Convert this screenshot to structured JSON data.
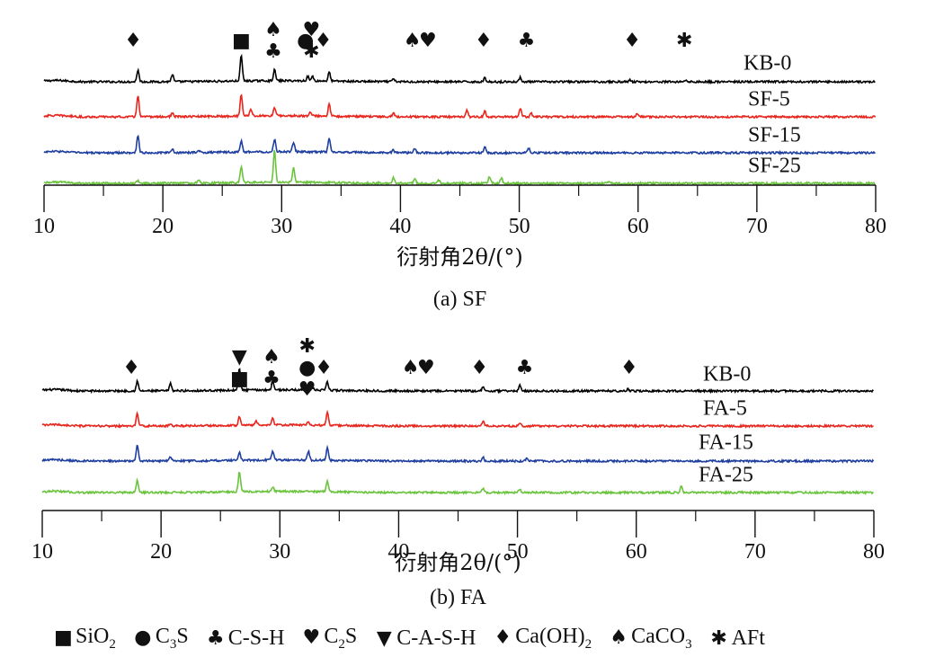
{
  "chart_data": [
    {
      "panel": "(a) SF",
      "type": "line",
      "caption": "(a) SF",
      "xlabel": "衍射角2θ/(°)",
      "xlim": [
        10,
        80
      ],
      "xticks": [
        10,
        20,
        30,
        40,
        50,
        60,
        70,
        80
      ],
      "yaxis": "none",
      "series": [
        {
          "name": "KB-0",
          "color": "#000000",
          "peaks": [
            [
              17.9,
              13
            ],
            [
              20.8,
              8
            ],
            [
              26.6,
              28
            ],
            [
              29.4,
              12
            ],
            [
              32.2,
              5
            ],
            [
              32.6,
              5
            ],
            [
              34.0,
              10
            ],
            [
              39.4,
              3
            ],
            [
              47.1,
              4
            ],
            [
              50.1,
              5
            ],
            [
              59.3,
              2
            ],
            [
              64.0,
              2
            ]
          ]
        },
        {
          "name": "SF-5",
          "color": "#e8261d",
          "peaks": [
            [
              17.9,
              24
            ],
            [
              20.8,
              4
            ],
            [
              26.6,
              24
            ],
            [
              27.4,
              8
            ],
            [
              29.4,
              9
            ],
            [
              32.4,
              5
            ],
            [
              34.0,
              14
            ],
            [
              39.4,
              4
            ],
            [
              45.6,
              7
            ],
            [
              47.1,
              6
            ],
            [
              50.1,
              9
            ],
            [
              51.0,
              4
            ],
            [
              59.9,
              3
            ]
          ]
        },
        {
          "name": "SF-15",
          "color": "#1f3fa0",
          "peaks": [
            [
              17.9,
              20
            ],
            [
              20.8,
              4
            ],
            [
              23.0,
              3
            ],
            [
              26.6,
              12
            ],
            [
              29.4,
              14
            ],
            [
              31.0,
              11
            ],
            [
              34.0,
              16
            ],
            [
              39.4,
              3
            ],
            [
              41.2,
              4
            ],
            [
              47.1,
              6
            ],
            [
              50.8,
              5
            ]
          ]
        },
        {
          "name": "SF-25",
          "color": "#6ac43d",
          "peaks": [
            [
              17.9,
              3
            ],
            [
              23.0,
              4
            ],
            [
              26.6,
              18
            ],
            [
              29.4,
              36
            ],
            [
              31.0,
              16
            ],
            [
              39.4,
              6
            ],
            [
              41.2,
              5
            ],
            [
              43.2,
              4
            ],
            [
              47.5,
              8
            ],
            [
              48.5,
              6
            ],
            [
              57.5,
              2
            ]
          ]
        }
      ],
      "annotations": [
        {
          "x": 17.5,
          "symbols": [
            "♦"
          ]
        },
        {
          "x": 26.6,
          "symbols": [
            "■"
          ]
        },
        {
          "x": 29.3,
          "symbols": [
            "♠",
            "♣"
          ]
        },
        {
          "x": 32.0,
          "symbols": [
            "●"
          ]
        },
        {
          "x": 32.5,
          "symbols": [
            "♥",
            "✱"
          ]
        },
        {
          "x": 33.5,
          "symbols": [
            "♦"
          ]
        },
        {
          "x": 41.0,
          "symbols": [
            "♠"
          ]
        },
        {
          "x": 42.3,
          "symbols": [
            "♥"
          ]
        },
        {
          "x": 47.0,
          "symbols": [
            "♦"
          ]
        },
        {
          "x": 50.6,
          "symbols": [
            "♣"
          ]
        },
        {
          "x": 59.5,
          "symbols": [
            "♦"
          ]
        },
        {
          "x": 63.9,
          "symbols": [
            "✱"
          ]
        }
      ]
    },
    {
      "panel": "(b) FA",
      "type": "line",
      "caption": "(b) FA",
      "xlabel": "衍射角2θ/(°)",
      "xlim": [
        10,
        80
      ],
      "xticks": [
        10,
        20,
        30,
        40,
        50,
        60,
        70,
        80
      ],
      "yaxis": "none",
      "series": [
        {
          "name": "KB-0",
          "color": "#000000",
          "peaks": [
            [
              18.0,
              11
            ],
            [
              20.8,
              8
            ],
            [
              26.6,
              24
            ],
            [
              29.4,
              10
            ],
            [
              32.3,
              5
            ],
            [
              32.7,
              5
            ],
            [
              34.0,
              9
            ],
            [
              47.1,
              4
            ],
            [
              50.2,
              6
            ],
            [
              59.3,
              2
            ]
          ]
        },
        {
          "name": "FA-5",
          "color": "#e8261d",
          "peaks": [
            [
              18.0,
              14
            ],
            [
              20.8,
              3
            ],
            [
              26.6,
              10
            ],
            [
              28.0,
              5
            ],
            [
              29.4,
              7
            ],
            [
              32.4,
              4
            ],
            [
              34.0,
              14
            ],
            [
              47.1,
              5
            ],
            [
              50.2,
              3
            ]
          ]
        },
        {
          "name": "FA-15",
          "color": "#1f3fa0",
          "peaks": [
            [
              18.0,
              18
            ],
            [
              20.8,
              5
            ],
            [
              26.6,
              9
            ],
            [
              29.4,
              10
            ],
            [
              32.4,
              10
            ],
            [
              34.0,
              14
            ],
            [
              47.1,
              4
            ],
            [
              50.8,
              3
            ]
          ]
        },
        {
          "name": "FA-25",
          "color": "#6ac43d",
          "peaks": [
            [
              18.0,
              14
            ],
            [
              26.6,
              22
            ],
            [
              29.4,
              5
            ],
            [
              34.0,
              12
            ],
            [
              47.1,
              4
            ],
            [
              50.2,
              3
            ],
            [
              63.8,
              7
            ]
          ]
        }
      ],
      "annotations": [
        {
          "x": 17.5,
          "symbols": [
            "♦"
          ]
        },
        {
          "x": 26.6,
          "symbols": [
            "▼",
            "■"
          ]
        },
        {
          "x": 29.3,
          "symbols": [
            "♠",
            "♣"
          ]
        },
        {
          "x": 32.3,
          "symbols": [
            "✱",
            "●",
            "♥"
          ]
        },
        {
          "x": 33.7,
          "symbols": [
            "♦"
          ]
        },
        {
          "x": 41.0,
          "symbols": [
            "♠"
          ]
        },
        {
          "x": 42.3,
          "symbols": [
            "♥"
          ]
        },
        {
          "x": 46.8,
          "symbols": [
            "♦"
          ]
        },
        {
          "x": 50.6,
          "symbols": [
            "♣"
          ]
        },
        {
          "x": 59.4,
          "symbols": [
            "♦"
          ]
        }
      ]
    }
  ],
  "legend": [
    {
      "symbol": "■",
      "icon": "square-icon",
      "label": "SiO",
      "sub": "2",
      "tail": ""
    },
    {
      "symbol": "●",
      "icon": "circle-icon",
      "label": "C",
      "sub": "3",
      "tail": "S"
    },
    {
      "symbol": "♣",
      "icon": "club-icon",
      "label": "C-S-H",
      "sub": "",
      "tail": ""
    },
    {
      "symbol": "♥",
      "icon": "heart-icon",
      "label": "C",
      "sub": "2",
      "tail": "S"
    },
    {
      "symbol": "▼",
      "icon": "down-triangle-icon",
      "label": "C-A-S-H",
      "sub": "",
      "tail": ""
    },
    {
      "symbol": "♦",
      "icon": "diamond-icon",
      "label": "Ca(OH)",
      "sub": "2",
      "tail": ""
    },
    {
      "symbol": "♠",
      "icon": "spade-icon",
      "label": "CaCO",
      "sub": "3",
      "tail": ""
    },
    {
      "symbol": "✱",
      "icon": "asterisk-icon",
      "label": "AFt",
      "sub": "",
      "tail": ""
    }
  ]
}
